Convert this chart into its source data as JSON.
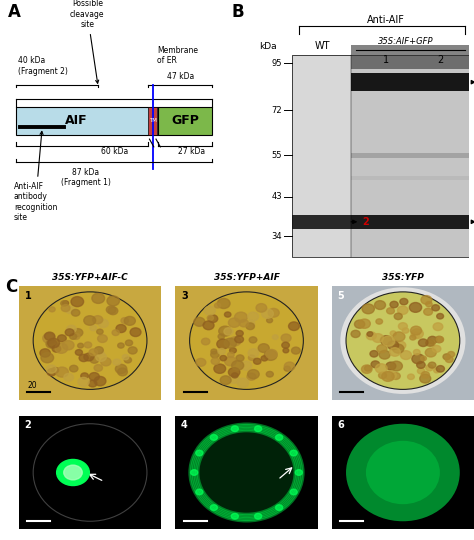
{
  "fig_width": 4.74,
  "fig_height": 5.4,
  "bg_color": "#ffffff",
  "panel_A": {
    "label": "A",
    "aif_color": "#b8dce8",
    "gfp_color": "#7cb84a",
    "tm_color": "#c44040",
    "aif_label": "AIF",
    "gfp_label": "GFP",
    "frag2": "40 kDa\n(Fragment 2)",
    "frag1": "87 kDa\n(Fragment 1)",
    "kda47": "47 kDa",
    "kda27": "27 kDa",
    "kda60": "60 kDa",
    "possible_cleavage": "Possible\ncleavage\nsite",
    "membrane_er": "Membrane\nof ER",
    "antibody": "Anti-AIF\nantibody\nrecognition\nsite"
  },
  "panel_B": {
    "label": "B",
    "title": "Anti-AIF",
    "subtitle": "35S:AIF+GFP",
    "kda_label": "kDa",
    "ladder": [
      95,
      72,
      55,
      43,
      34
    ],
    "arrow_color": "#cc0000"
  },
  "panel_C": {
    "label": "C",
    "col_labels": [
      "35S:YFP+AIF-C",
      "35S:YFP+AIF",
      "35S:YFP"
    ],
    "bright_bg_left": "#c8a840",
    "bright_bg_right": "#b0b8c0",
    "fluor_bg": "#000000",
    "green_spot": "#22ee55",
    "green_ring": "#22cc44",
    "green_fill": "#11aa33"
  }
}
